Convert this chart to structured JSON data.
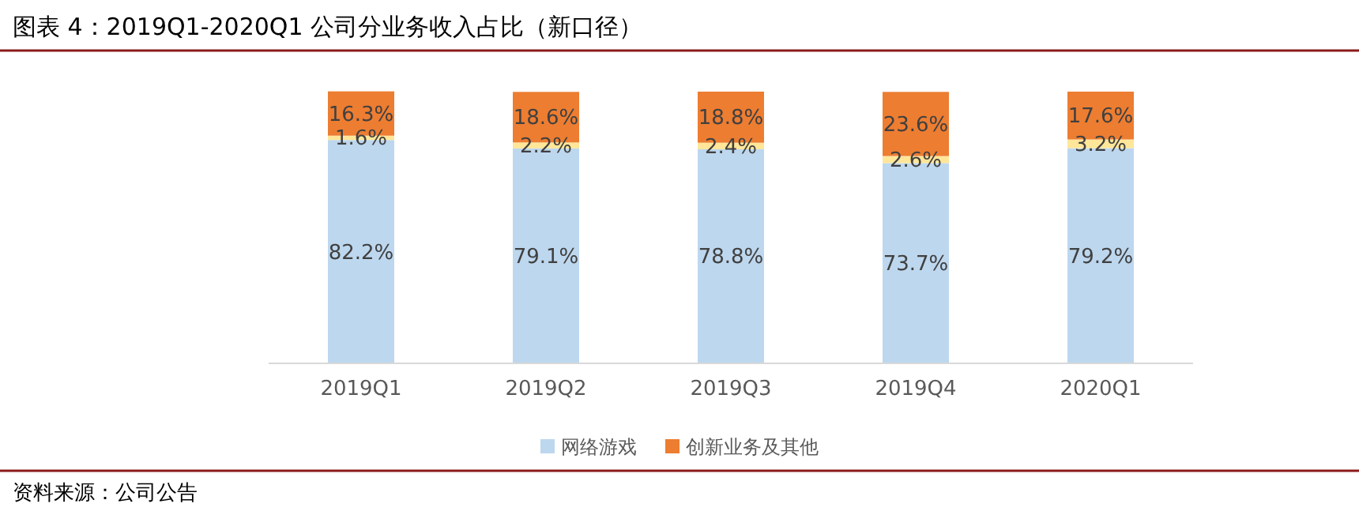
{
  "chart_data": {
    "type": "bar",
    "title": "图表 4：2019Q1-2020Q1 公司分业务收入占比（新口径）",
    "categories": [
      "2019Q1",
      "2019Q2",
      "2019Q3",
      "2019Q4",
      "2020Q1"
    ],
    "stacked": true,
    "ylim": [
      0,
      100
    ],
    "legend": "bottom",
    "series": [
      {
        "name": "网络游戏",
        "color": "#bdd7ee",
        "values": [
          82.2,
          79.1,
          78.8,
          73.7,
          79.2
        ],
        "value_labels": [
          "82.2%",
          "79.1%",
          "78.8%",
          "73.7%",
          "79.2%"
        ]
      },
      {
        "color": "#ffe699",
        "values": [
          1.6,
          2.2,
          2.4,
          2.6,
          3.2
        ],
        "value_labels": [
          "1.6%",
          "2.2%",
          "2.4%",
          "2.6%",
          "3.2%"
        ]
      },
      {
        "name": "创新业务及其他",
        "color": "#ed7d31",
        "values": [
          16.3,
          18.6,
          18.8,
          23.6,
          17.6
        ],
        "value_labels": [
          "16.3%",
          "18.6%",
          "18.8%",
          "23.6%",
          "17.6%"
        ]
      }
    ],
    "annotations": [
      "资料来源：公司公告"
    ]
  }
}
